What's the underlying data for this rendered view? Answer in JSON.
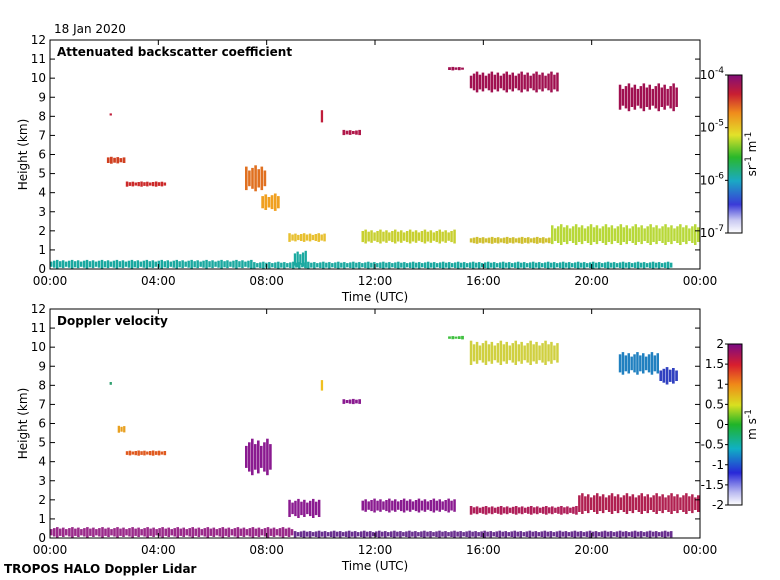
{
  "date": "18 Jan 2020",
  "footer": "TROPOS HALO Doppler Lidar",
  "chart_data": [
    {
      "type": "heatmap",
      "title": "Attenuated backscatter coefficient",
      "xlabel": "Time (UTC)",
      "ylabel": "Height (km)",
      "xticks": [
        "00:00",
        "04:00",
        "08:00",
        "12:00",
        "16:00",
        "20:00",
        "00:00"
      ],
      "xlim_hours": [
        0,
        24
      ],
      "ylim": [
        0,
        12
      ],
      "yticks": [
        "0",
        "1",
        "2",
        "3",
        "4",
        "5",
        "6",
        "7",
        "8",
        "9",
        "10",
        "11",
        "12"
      ],
      "colorbar": {
        "label_html": "sr<sup>-1</sup> m<sup>-1</sup>",
        "ticks": [
          "10-4",
          "10-5",
          "10-6",
          "10-7"
        ],
        "tick_bases": [
          "10",
          "10",
          "10",
          "10"
        ],
        "tick_exps": [
          "-4",
          "-5",
          "-6",
          "-7"
        ],
        "scale": "log",
        "range": [
          1e-07,
          0.0001
        ]
      },
      "layers": [
        {
          "t0": 0.0,
          "t1": 7.5,
          "h0": 0.0,
          "h1": 0.5,
          "color": "#1aa9a0"
        },
        {
          "t0": 7.5,
          "t1": 23.0,
          "h0": 0.0,
          "h1": 0.4,
          "color": "#1aa9a0"
        },
        {
          "t0": 9.0,
          "t1": 9.5,
          "h0": 0.0,
          "h1": 1.0,
          "color": "#1aa9a0"
        },
        {
          "t0": 2.8,
          "t1": 4.3,
          "h0": 4.3,
          "h1": 4.6,
          "color": "#cc2a2a"
        },
        {
          "t0": 2.1,
          "t1": 2.8,
          "h0": 5.5,
          "h1": 5.9,
          "color": "#d04020"
        },
        {
          "t0": 2.2,
          "t1": 2.3,
          "h0": 8.0,
          "h1": 8.2,
          "color": "#c01d3a"
        },
        {
          "t0": 7.2,
          "t1": 8.0,
          "h0": 4.0,
          "h1": 5.5,
          "color": "#e07020"
        },
        {
          "t0": 7.8,
          "t1": 8.5,
          "h0": 3.0,
          "h1": 4.0,
          "color": "#f0a020"
        },
        {
          "t0": 8.8,
          "t1": 10.2,
          "h0": 1.4,
          "h1": 1.9,
          "color": "#e8c030"
        },
        {
          "t0": 11.5,
          "t1": 15.0,
          "h0": 1.3,
          "h1": 2.1,
          "color": "#c8d030"
        },
        {
          "t0": 15.5,
          "t1": 18.5,
          "h0": 1.3,
          "h1": 1.7,
          "color": "#d0c030"
        },
        {
          "t0": 18.5,
          "t1": 24.0,
          "h0": 1.2,
          "h1": 2.4,
          "color": "#b8d838"
        },
        {
          "t0": 10.0,
          "t1": 10.1,
          "h0": 7.5,
          "h1": 8.5,
          "color": "#c01d3a"
        },
        {
          "t0": 10.8,
          "t1": 11.5,
          "h0": 7.0,
          "h1": 7.3,
          "color": "#b0184a"
        },
        {
          "t0": 14.7,
          "t1": 15.3,
          "h0": 10.4,
          "h1": 10.6,
          "color": "#a01050"
        },
        {
          "t0": 15.5,
          "t1": 18.8,
          "h0": 9.2,
          "h1": 10.4,
          "color": "#a01050"
        },
        {
          "t0": 21.0,
          "t1": 23.2,
          "h0": 8.2,
          "h1": 9.8,
          "color": "#a01050"
        }
      ]
    },
    {
      "type": "heatmap",
      "title": "Doppler velocity",
      "xlabel": "Time (UTC)",
      "ylabel": "Height (km)",
      "xticks": [
        "00:00",
        "04:00",
        "08:00",
        "12:00",
        "16:00",
        "20:00",
        "00:00"
      ],
      "xlim_hours": [
        0,
        24
      ],
      "ylim": [
        0,
        12
      ],
      "yticks": [
        "0",
        "1",
        "2",
        "3",
        "4",
        "5",
        "6",
        "7",
        "8",
        "9",
        "10",
        "11",
        "12"
      ],
      "colorbar": {
        "label_html": "m s<sup>-1</sup>",
        "ticks": [
          "2",
          "1.5",
          "1",
          "0.5",
          "0",
          "-0.5",
          "-1",
          "-1.5",
          "-2"
        ],
        "scale": "linear",
        "range": [
          -2,
          2
        ]
      },
      "layers": [
        {
          "t0": 0.0,
          "t1": 9.0,
          "h0": 0.0,
          "h1": 0.6,
          "color": "#9a2a8a"
        },
        {
          "t0": 9.0,
          "t1": 23.0,
          "h0": 0.0,
          "h1": 0.4,
          "color": "#6a3090"
        },
        {
          "t0": 2.8,
          "t1": 4.3,
          "h0": 4.3,
          "h1": 4.6,
          "color": "#e05a20"
        },
        {
          "t0": 2.5,
          "t1": 2.8,
          "h0": 5.5,
          "h1": 5.9,
          "color": "#e8a020"
        },
        {
          "t0": 2.2,
          "t1": 2.3,
          "h0": 8.0,
          "h1": 8.2,
          "color": "#30a070"
        },
        {
          "t0": 7.2,
          "t1": 8.2,
          "h0": 3.2,
          "h1": 5.3,
          "color": "#8a1a90"
        },
        {
          "t0": 8.8,
          "t1": 10.0,
          "h0": 1.0,
          "h1": 2.1,
          "color": "#8a1a90"
        },
        {
          "t0": 11.5,
          "t1": 15.0,
          "h0": 1.3,
          "h1": 2.1,
          "color": "#8a1a90"
        },
        {
          "t0": 15.5,
          "t1": 19.5,
          "h0": 1.2,
          "h1": 1.7,
          "color": "#b0205a"
        },
        {
          "t0": 19.5,
          "t1": 24.0,
          "h0": 1.2,
          "h1": 2.4,
          "color": "#b02050"
        },
        {
          "t0": 10.0,
          "t1": 10.1,
          "h0": 7.5,
          "h1": 8.5,
          "color": "#f0c020"
        },
        {
          "t0": 10.8,
          "t1": 11.5,
          "h0": 7.0,
          "h1": 7.3,
          "color": "#8a1a90"
        },
        {
          "t0": 14.7,
          "t1": 15.3,
          "h0": 10.4,
          "h1": 10.6,
          "color": "#40c040"
        },
        {
          "t0": 15.5,
          "t1": 18.8,
          "h0": 9.0,
          "h1": 10.4,
          "color": "#d0d040"
        },
        {
          "t0": 21.0,
          "t1": 22.5,
          "h0": 8.5,
          "h1": 9.8,
          "color": "#2080c0"
        },
        {
          "t0": 22.5,
          "t1": 23.2,
          "h0": 8.0,
          "h1": 9.0,
          "color": "#3040c0"
        }
      ]
    }
  ]
}
